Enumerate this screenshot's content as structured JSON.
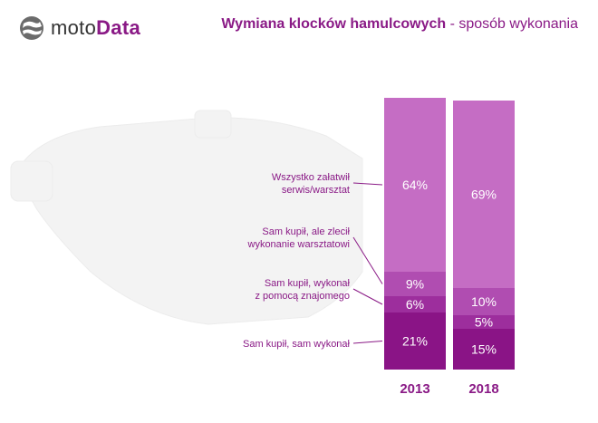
{
  "brand": {
    "part1": "moto",
    "part2": "Data"
  },
  "header": {
    "title_bold": "Wymiana klocków hamulcowych",
    "title_rest": " - sposób wykonania"
  },
  "colors": {
    "accent": "#8a1a86",
    "seg_serwis": "#c56dc4",
    "seg_kupil_zlecil": "#b04db1",
    "seg_znajomy": "#9d2e9d",
    "seg_sam": "#8a1486",
    "label_text": "#8a1a86"
  },
  "chart_data": {
    "type": "bar",
    "stacked": true,
    "categories": [
      "2013",
      "2018"
    ],
    "series": [
      {
        "name": "Sam kupił, sam wykonał",
        "values": [
          21,
          15
        ],
        "labels": [
          "21%",
          "15%"
        ]
      },
      {
        "name": "Sam kupił, wykonał\nz pomocą znajomego",
        "values": [
          6,
          5
        ],
        "labels": [
          "6%",
          "5%"
        ]
      },
      {
        "name": "Sam kupił, ale zlecił\nwykonanie warsztatowi",
        "values": [
          9,
          10
        ],
        "labels": [
          "9%",
          "10%"
        ]
      },
      {
        "name": "Wszystko załatwił\nserwis/warsztat",
        "values": [
          64,
          69
        ],
        "labels": [
          "64%",
          "69%"
        ]
      }
    ],
    "ylim": [
      0,
      100
    ],
    "grid": false,
    "legend": "left"
  }
}
